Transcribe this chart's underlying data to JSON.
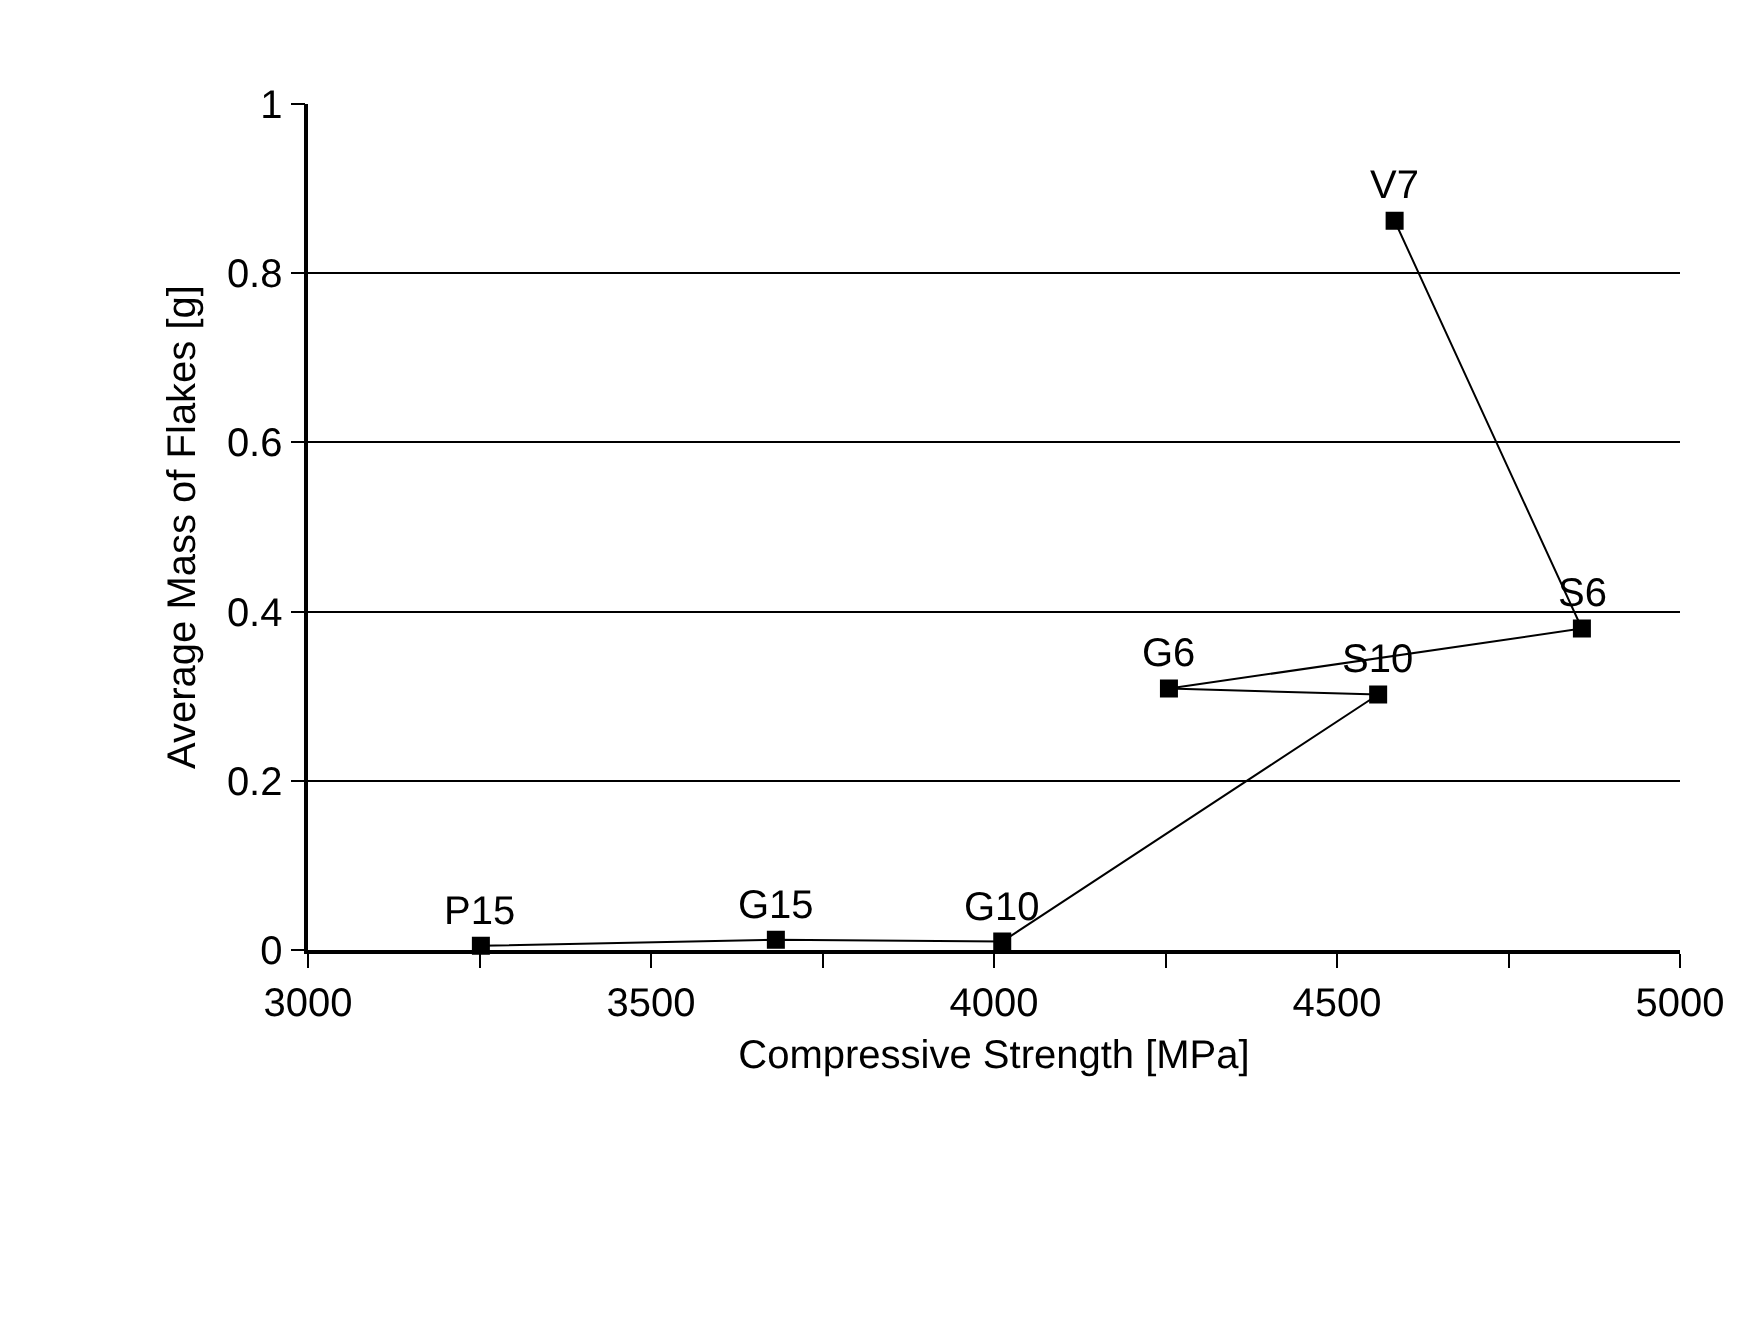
{
  "chart_data": {
    "type": "line",
    "xlabel": "Compressive Strength [MPa]",
    "ylabel": "Average Mass of Flakes [g]",
    "series": [
      {
        "color": "#000000",
        "x": [
          3252,
          3682,
          4012,
          4560,
          4255,
          4857,
          4584
        ],
        "values": [
          0.005,
          0.012,
          0.01,
          0.302,
          0.309,
          0.38,
          0.862
        ]
      }
    ],
    "xlim": [
      3000,
      5000
    ],
    "xticks": [
      3000,
      {
        "value": 3250,
        "label": null
      },
      3500,
      {
        "value": 3750,
        "label": null
      },
      4000,
      {
        "value": 4250,
        "label": null
      },
      4500,
      {
        "value": 4750,
        "label": null
      },
      5000
    ],
    "ylim": [
      0,
      1
    ],
    "yticks": [
      0,
      0.2,
      0.4,
      0.6,
      0.8,
      1
    ],
    "grid": "y",
    "marker": "square",
    "line_style": "solid",
    "annotations": [
      {
        "text": "P15",
        "x": 3252,
        "y": 0.005
      },
      {
        "text": "G15",
        "x": 3682,
        "y": 0.012
      },
      {
        "text": "G10",
        "x": 4012,
        "y": 0.01
      },
      {
        "text": "S10",
        "x": 4560,
        "y": 0.302
      },
      {
        "text": "G6",
        "x": 4255,
        "y": 0.309
      },
      {
        "text": "S6",
        "x": 4857,
        "y": 0.38
      },
      {
        "text": "V7",
        "x": 4584,
        "y": 0.862
      }
    ]
  }
}
